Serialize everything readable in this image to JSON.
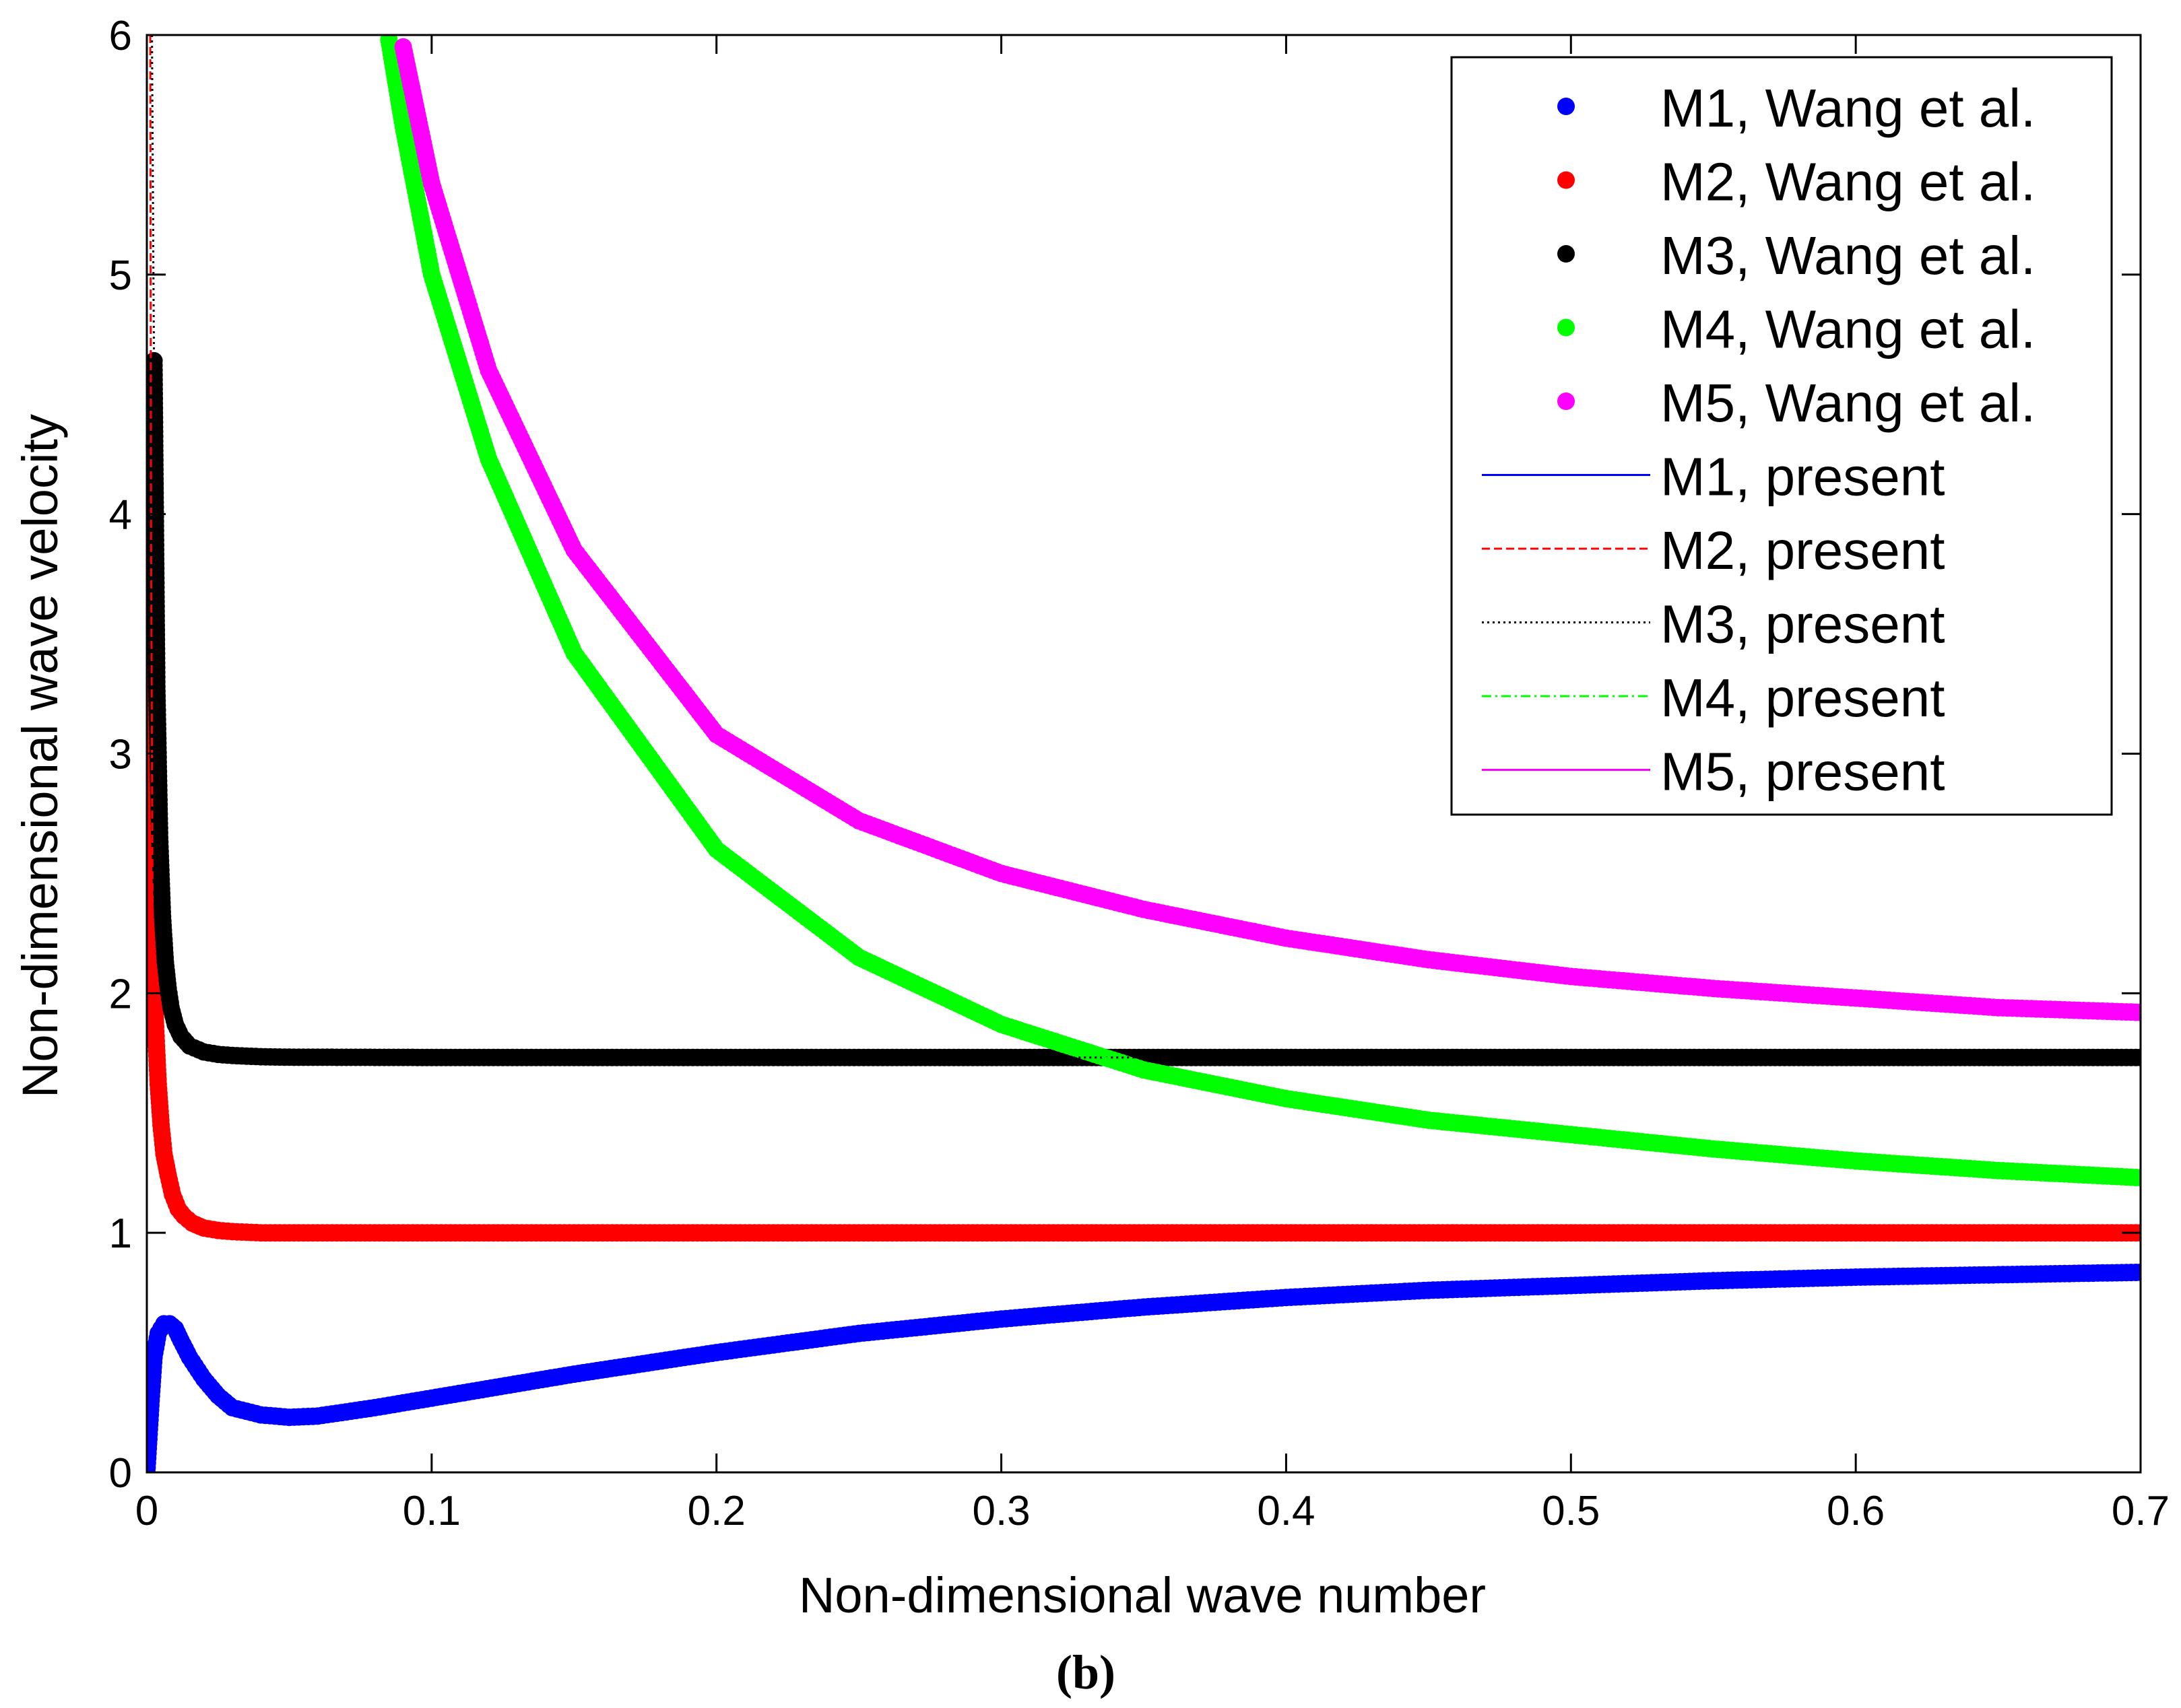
{
  "chart_data": {
    "type": "scatter",
    "xlabel": "Non-dimensional wave number",
    "ylabel": "Non-dimensional wave velocity",
    "xlim": [
      0,
      0.7
    ],
    "ylim": [
      0,
      6
    ],
    "x_ticks": [
      0,
      0.1,
      0.2,
      0.3,
      0.4,
      0.5,
      0.6,
      0.7
    ],
    "x_tick_labels": [
      "0",
      "0.1",
      "0.2",
      "0.3",
      "0.4",
      "0.5",
      "0.6",
      "0.7"
    ],
    "y_ticks": [
      0,
      1,
      2,
      3,
      4,
      5,
      6
    ],
    "y_tick_labels": [
      "0",
      "1",
      "2",
      "3",
      "4",
      "5",
      "6"
    ],
    "grid": false,
    "legend_position": "top-right",
    "caption": "(b)",
    "series": [
      {
        "name": "M1, Wang et al.",
        "style": "markers",
        "color": "#0000ff",
        "x": [
          0.0,
          0.0015,
          0.0025,
          0.004,
          0.006,
          0.008,
          0.01,
          0.012,
          0.015,
          0.02,
          0.025,
          0.03,
          0.04,
          0.05,
          0.06,
          0.08,
          0.1,
          0.15,
          0.2,
          0.25,
          0.3,
          0.35,
          0.4,
          0.45,
          0.5,
          0.55,
          0.6,
          0.65,
          0.7
        ],
        "y": [
          0.0,
          0.3,
          0.48,
          0.58,
          0.62,
          0.62,
          0.6,
          0.55,
          0.48,
          0.39,
          0.32,
          0.27,
          0.24,
          0.23,
          0.235,
          0.27,
          0.31,
          0.41,
          0.5,
          0.58,
          0.64,
          0.69,
          0.73,
          0.76,
          0.78,
          0.8,
          0.815,
          0.825,
          0.835
        ]
      },
      {
        "name": "M2, Wang et al.",
        "style": "markers",
        "color": "#ff0000",
        "x": [
          0.0015,
          0.002,
          0.003,
          0.004,
          0.005,
          0.006,
          0.0075,
          0.009,
          0.011,
          0.013,
          0.016,
          0.02,
          0.025,
          0.03,
          0.04,
          0.05,
          0.1,
          0.2,
          0.3,
          0.4,
          0.5,
          0.6,
          0.7
        ],
        "y": [
          3.88,
          2.38,
          1.88,
          1.62,
          1.45,
          1.33,
          1.24,
          1.16,
          1.1,
          1.07,
          1.04,
          1.02,
          1.01,
          1.005,
          1.0,
          1.0,
          1.0,
          1.0,
          1.0,
          1.0,
          1.0,
          1.0,
          1.0
        ]
      },
      {
        "name": "M3, Wang et al.",
        "style": "markers",
        "color": "#000000",
        "x": [
          0.0025,
          0.0035,
          0.0045,
          0.0055,
          0.0065,
          0.0075,
          0.0085,
          0.01,
          0.012,
          0.015,
          0.02,
          0.025,
          0.03,
          0.04,
          0.05,
          0.1,
          0.2,
          0.3,
          0.4,
          0.5,
          0.6,
          0.7
        ],
        "y": [
          4.64,
          3.28,
          2.65,
          2.32,
          2.13,
          2.02,
          1.94,
          1.87,
          1.82,
          1.78,
          1.755,
          1.745,
          1.74,
          1.735,
          1.733,
          1.732,
          1.732,
          1.732,
          1.732,
          1.732,
          1.732,
          1.732
        ]
      },
      {
        "name": "M4, Wang et al.",
        "style": "markers",
        "color": "#00ff00",
        "x": [
          0.085,
          0.09,
          0.1,
          0.12,
          0.15,
          0.2,
          0.25,
          0.3,
          0.35,
          0.4,
          0.45,
          0.5,
          0.55,
          0.6,
          0.65,
          0.7
        ],
        "y": [
          5.98,
          5.62,
          5.0,
          4.23,
          3.42,
          2.6,
          2.15,
          1.87,
          1.68,
          1.56,
          1.47,
          1.41,
          1.35,
          1.3,
          1.26,
          1.23
        ]
      },
      {
        "name": "M5, Wang et al.",
        "style": "markers",
        "color": "#ff00ff",
        "x": [
          0.09,
          0.1,
          0.12,
          0.15,
          0.2,
          0.25,
          0.3,
          0.35,
          0.4,
          0.45,
          0.5,
          0.55,
          0.6,
          0.65,
          0.7
        ],
        "y": [
          5.95,
          5.38,
          4.6,
          3.85,
          3.08,
          2.72,
          2.5,
          2.35,
          2.23,
          2.14,
          2.07,
          2.02,
          1.98,
          1.94,
          1.92
        ]
      },
      {
        "name": "M1, present",
        "style": "solid",
        "color": "#0000ff",
        "x": [
          0.0,
          0.0015,
          0.0025,
          0.004,
          0.006,
          0.008,
          0.01,
          0.012,
          0.015,
          0.02,
          0.025,
          0.03,
          0.04,
          0.05,
          0.06,
          0.08,
          0.1,
          0.15,
          0.2,
          0.25,
          0.3,
          0.35,
          0.4,
          0.45,
          0.5,
          0.55,
          0.6,
          0.65,
          0.7
        ],
        "y": [
          0.0,
          0.3,
          0.48,
          0.58,
          0.62,
          0.62,
          0.6,
          0.55,
          0.48,
          0.39,
          0.32,
          0.27,
          0.24,
          0.23,
          0.235,
          0.27,
          0.31,
          0.41,
          0.5,
          0.58,
          0.64,
          0.69,
          0.73,
          0.76,
          0.78,
          0.8,
          0.815,
          0.825,
          0.835
        ]
      },
      {
        "name": "M2, present",
        "style": "dashed",
        "color": "#ff0000",
        "x": [
          0.0012,
          0.0015,
          0.002,
          0.003,
          0.004,
          0.005,
          0.006,
          0.0075,
          0.009,
          0.011,
          0.013,
          0.016,
          0.02,
          0.025,
          0.03,
          0.04,
          0.05,
          0.1,
          0.2,
          0.3,
          0.4,
          0.5,
          0.6,
          0.7
        ],
        "y": [
          6.0,
          3.88,
          2.38,
          1.88,
          1.62,
          1.45,
          1.33,
          1.24,
          1.16,
          1.1,
          1.07,
          1.04,
          1.02,
          1.01,
          1.005,
          1.0,
          1.0,
          1.0,
          1.0,
          1.0,
          1.0,
          1.0,
          1.0,
          1.0
        ]
      },
      {
        "name": "M3, present",
        "style": "dotted",
        "color": "#000000",
        "x": [
          0.0018,
          0.0025,
          0.0035,
          0.0045,
          0.0055,
          0.0065,
          0.0075,
          0.0085,
          0.01,
          0.012,
          0.015,
          0.02,
          0.025,
          0.03,
          0.04,
          0.05,
          0.1,
          0.2,
          0.3,
          0.4,
          0.5,
          0.6,
          0.7
        ],
        "y": [
          6.0,
          4.64,
          3.28,
          2.65,
          2.32,
          2.13,
          2.02,
          1.94,
          1.87,
          1.82,
          1.78,
          1.755,
          1.745,
          1.74,
          1.735,
          1.733,
          1.732,
          1.732,
          1.732,
          1.732,
          1.732,
          1.732,
          1.732
        ]
      },
      {
        "name": "M4, present",
        "style": "dashdot",
        "color": "#00ff00",
        "x": [
          0.085,
          0.09,
          0.1,
          0.12,
          0.15,
          0.2,
          0.25,
          0.3,
          0.35,
          0.4,
          0.45,
          0.5,
          0.55,
          0.6,
          0.65,
          0.7
        ],
        "y": [
          5.98,
          5.62,
          5.0,
          4.23,
          3.42,
          2.6,
          2.15,
          1.87,
          1.68,
          1.56,
          1.47,
          1.41,
          1.35,
          1.3,
          1.26,
          1.23
        ]
      },
      {
        "name": "M5, present",
        "style": "solid",
        "color": "#ff00ff",
        "x": [
          0.09,
          0.1,
          0.12,
          0.15,
          0.2,
          0.25,
          0.3,
          0.35,
          0.4,
          0.45,
          0.5,
          0.55,
          0.6,
          0.65,
          0.7
        ],
        "y": [
          5.95,
          5.38,
          4.6,
          3.85,
          3.08,
          2.72,
          2.5,
          2.35,
          2.23,
          2.14,
          2.07,
          2.02,
          1.98,
          1.94,
          1.92
        ]
      }
    ]
  }
}
